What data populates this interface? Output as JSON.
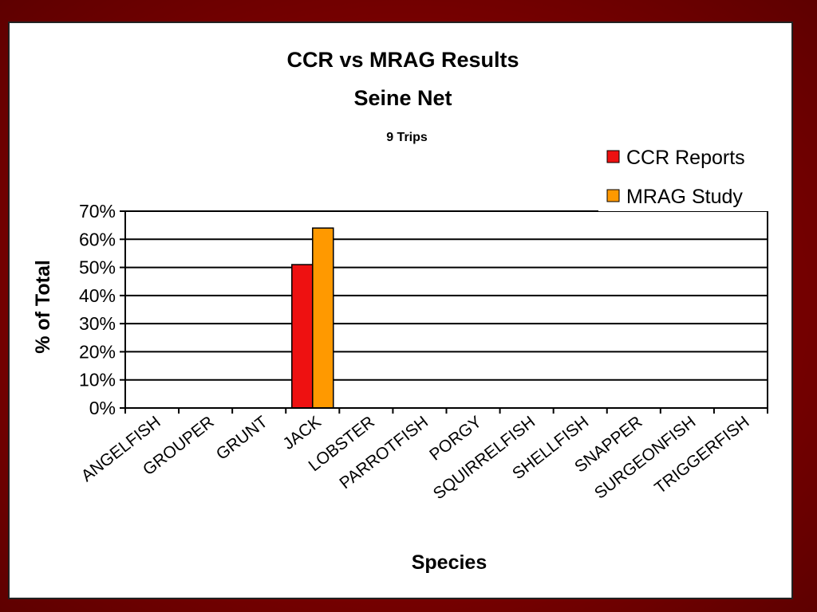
{
  "chart_data": {
    "type": "bar",
    "title": "CCR vs MRAG Results",
    "subtitle": "Seine Net",
    "note": "9 Trips",
    "xlabel": "Species",
    "ylabel": "% of Total",
    "categories": [
      "ANGELFISH",
      "GROUPER",
      "GRUNT",
      "JACK",
      "LOBSTER",
      "PARROTFISH",
      "PORGY",
      "SQUIRRELFISH",
      "SHELLFISH",
      "SNAPPER",
      "SURGEONFISH",
      "TRIGGERFISH"
    ],
    "series": [
      {
        "name": "CCR Reports",
        "color": "#ee1111",
        "values": [
          0,
          0,
          0,
          51,
          0,
          0,
          0,
          0,
          0,
          0,
          0,
          0
        ]
      },
      {
        "name": "MRAG Study",
        "color": "#ff9900",
        "values": [
          0,
          0,
          0,
          64,
          0,
          0,
          0,
          0,
          0,
          0,
          0,
          0
        ]
      }
    ],
    "ylim": [
      0,
      70
    ],
    "yticks": [
      0,
      10,
      20,
      30,
      40,
      50,
      60,
      70
    ],
    "ytick_format": "percent",
    "grid": true,
    "legend_position": "top-right"
  }
}
